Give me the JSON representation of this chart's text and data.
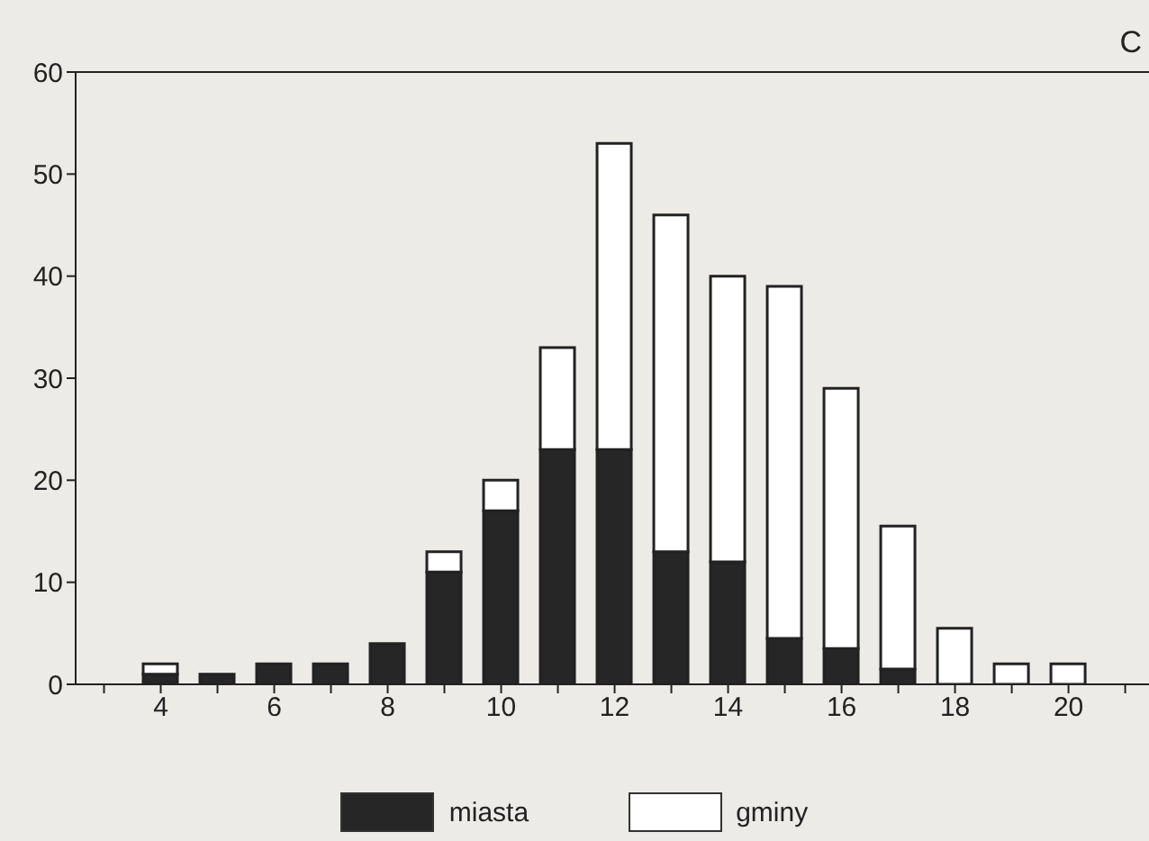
{
  "chart_data": {
    "type": "bar",
    "stacked": true,
    "x": [
      4,
      5,
      6,
      7,
      8,
      9,
      10,
      11,
      12,
      13,
      14,
      15,
      16,
      17,
      18,
      19,
      20
    ],
    "series": [
      {
        "name": "miasta",
        "color": "#262626",
        "values": [
          1,
          1,
          2,
          2,
          4,
          11,
          17,
          23,
          23,
          13,
          12,
          4.5,
          3.5,
          1.5,
          0,
          0,
          0
        ]
      },
      {
        "name": "gminy",
        "color": "#ffffff",
        "values": [
          1,
          0,
          0,
          0,
          0,
          2,
          3,
          10,
          30,
          33,
          28,
          34.5,
          25.5,
          14,
          5.5,
          2,
          2
        ]
      }
    ],
    "xlim": [
      2.5,
      21.8
    ],
    "xticks": [
      {
        "value": 3,
        "label": null
      },
      4,
      {
        "value": 5,
        "label": null
      },
      6,
      {
        "value": 7,
        "label": null
      },
      8,
      {
        "value": 9,
        "label": null
      },
      10,
      {
        "value": 11,
        "label": null
      },
      12,
      {
        "value": 13,
        "label": null
      },
      14,
      {
        "value": 15,
        "label": null
      },
      16,
      {
        "value": 17,
        "label": null
      },
      18,
      {
        "value": 19,
        "label": null
      },
      20,
      {
        "value": 21,
        "label": null
      }
    ],
    "ylim": [
      0,
      60
    ],
    "yticks": [
      0,
      10,
      20,
      30,
      40,
      50,
      60
    ],
    "annotations": [
      "C"
    ],
    "legend": "bottom",
    "grid": false
  }
}
